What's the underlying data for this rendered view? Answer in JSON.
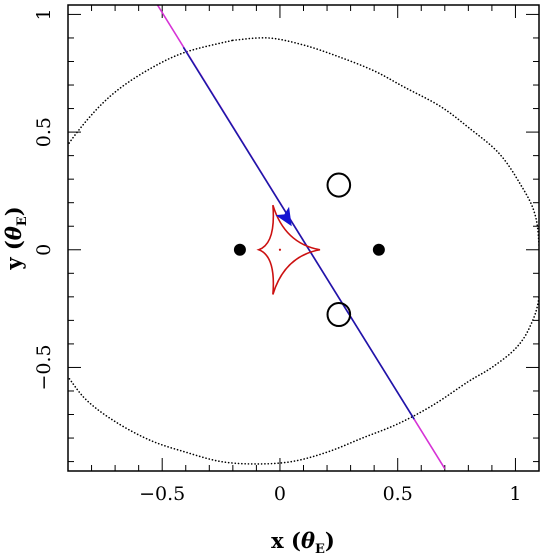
{
  "chart_data": {
    "type": "scatter",
    "title": "",
    "xlabel": {
      "prefix": "x (",
      "symbol": "θ",
      "subscript": "E",
      "suffix": ")"
    },
    "ylabel": {
      "prefix": "y (",
      "symbol": "θ",
      "subscript": "E",
      "suffix": ")"
    },
    "xlim": [
      -0.9,
      1.1
    ],
    "ylim": [
      -0.94,
      1.04
    ],
    "x_tick_labels": [
      {
        "value": -0.5,
        "label": "−0.5"
      },
      {
        "value": 0,
        "label": "0"
      },
      {
        "value": 0.5,
        "label": "0.5"
      },
      {
        "value": 1,
        "label": "1"
      }
    ],
    "y_tick_labels": [
      {
        "value": -0.5,
        "label": "−0.5"
      },
      {
        "value": 0,
        "label": "0"
      },
      {
        "value": 0.5,
        "label": "0.5"
      },
      {
        "value": 1,
        "label": "1"
      }
    ],
    "x_major_step": 0.5,
    "x_minor_step": 0.1,
    "y_major_step": 0.5,
    "y_minor_step": 0.1,
    "grid": false,
    "lenses": [
      {
        "x": -0.17,
        "y": 0.0
      },
      {
        "x": 0.42,
        "y": 0.0
      }
    ],
    "images": [
      {
        "x": 0.25,
        "y": 0.275,
        "rx": 0.048,
        "ry": 0.048
      },
      {
        "x": 0.25,
        "y": -0.275,
        "rx": 0.048,
        "ry": 0.048
      }
    ],
    "source_trajectory": {
      "points": [
        [
          -0.52,
          1.04
        ],
        [
          0.7,
          -0.93
        ]
      ],
      "blue_segment": [
        [
          -0.41,
          0.86
        ],
        [
          0.57,
          -0.72
        ]
      ],
      "arrow_tip": [
        0.05,
        0.1
      ],
      "arrow_length": 0.06
    },
    "source_center": [
      0.0,
      0.0
    ],
    "caustic": {
      "cusps": [
        [
          -0.03,
          0.19
        ],
        [
          0.17,
          0.0
        ],
        [
          -0.03,
          -0.19
        ],
        [
          -0.09,
          0.0
        ]
      ]
    },
    "critical_curve": [
      [
        -0.2,
        0.89
      ],
      [
        -0.05,
        0.9
      ],
      [
        0.1,
        0.87
      ],
      [
        0.25,
        0.82
      ],
      [
        0.4,
        0.76
      ],
      [
        0.53,
        0.69
      ],
      [
        0.68,
        0.61
      ],
      [
        0.8,
        0.52
      ],
      [
        0.93,
        0.41
      ],
      [
        1.02,
        0.28
      ],
      [
        1.08,
        0.16
      ],
      [
        1.1,
        0.02
      ],
      [
        1.1,
        -0.2
      ],
      [
        1.06,
        -0.33
      ],
      [
        1.0,
        -0.42
      ],
      [
        0.9,
        -0.5
      ],
      [
        0.8,
        -0.56
      ],
      [
        0.65,
        -0.66
      ],
      [
        0.5,
        -0.74
      ],
      [
        0.35,
        -0.8
      ],
      [
        0.2,
        -0.86
      ],
      [
        0.05,
        -0.9
      ],
      [
        -0.1,
        -0.91
      ],
      [
        -0.25,
        -0.9
      ],
      [
        -0.4,
        -0.86
      ],
      [
        -0.55,
        -0.81
      ],
      [
        -0.7,
        -0.73
      ],
      [
        -0.82,
        -0.64
      ],
      [
        -0.9,
        -0.54
      ],
      [
        -1.0,
        -0.4
      ],
      [
        -1.05,
        -0.2
      ],
      [
        -1.06,
        0.02
      ],
      [
        -1.02,
        0.22
      ],
      [
        -0.93,
        0.4
      ],
      [
        -0.82,
        0.55
      ],
      [
        -0.7,
        0.67
      ],
      [
        -0.55,
        0.77
      ],
      [
        -0.4,
        0.84
      ],
      [
        -0.2,
        0.89
      ]
    ],
    "colors": {
      "trajectory_outer": "#d633d6",
      "trajectory_inner": "#1a1aa8",
      "arrow": "#1414d2",
      "caustic": "#cc1111",
      "critical_curve": "#000000",
      "lens": "#000000",
      "image": "#000000"
    }
  }
}
